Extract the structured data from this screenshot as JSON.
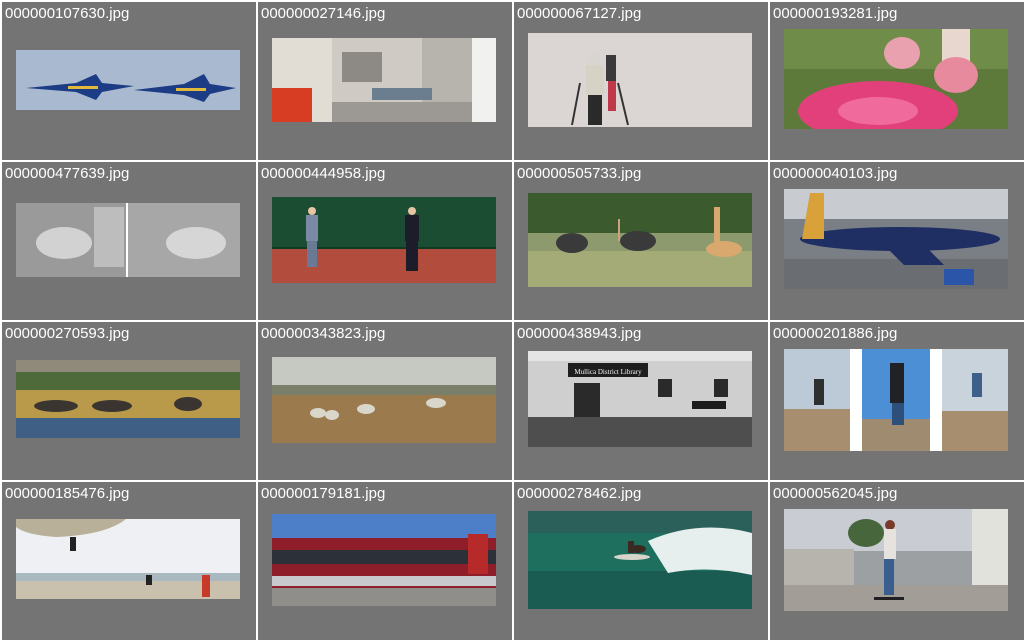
{
  "thumbnails": [
    {
      "filename": "000000107630.jpg",
      "icon": "jets-photo"
    },
    {
      "filename": "000000027146.jpg",
      "icon": "kitchen-photo"
    },
    {
      "filename": "000000067127.jpg",
      "icon": "skiers-photo"
    },
    {
      "filename": "000000193281.jpg",
      "icon": "frisbee-photo"
    },
    {
      "filename": "000000477639.jpg",
      "icon": "sheep-photo"
    },
    {
      "filename": "000000444958.jpg",
      "icon": "tennis-kids-photo"
    },
    {
      "filename": "000000505733.jpg",
      "icon": "ostrich-giraffe-photo"
    },
    {
      "filename": "000000040103.jpg",
      "icon": "airplane-photo"
    },
    {
      "filename": "000000270593.jpg",
      "icon": "elephants-photo"
    },
    {
      "filename": "000000343823.jpg",
      "icon": "moor-sheep-photo"
    },
    {
      "filename": "000000438943.jpg",
      "icon": "library-photo"
    },
    {
      "filename": "000000201886.jpg",
      "icon": "skateboard-triptych-photo"
    },
    {
      "filename": "000000185476.jpg",
      "icon": "beach-kite-photo"
    },
    {
      "filename": "000000179181.jpg",
      "icon": "train-photo"
    },
    {
      "filename": "000000278462.jpg",
      "icon": "surfer-photo"
    },
    {
      "filename": "000000562045.jpg",
      "icon": "skateboarder-street-photo"
    }
  ],
  "sign_text": "Mullica District Library"
}
